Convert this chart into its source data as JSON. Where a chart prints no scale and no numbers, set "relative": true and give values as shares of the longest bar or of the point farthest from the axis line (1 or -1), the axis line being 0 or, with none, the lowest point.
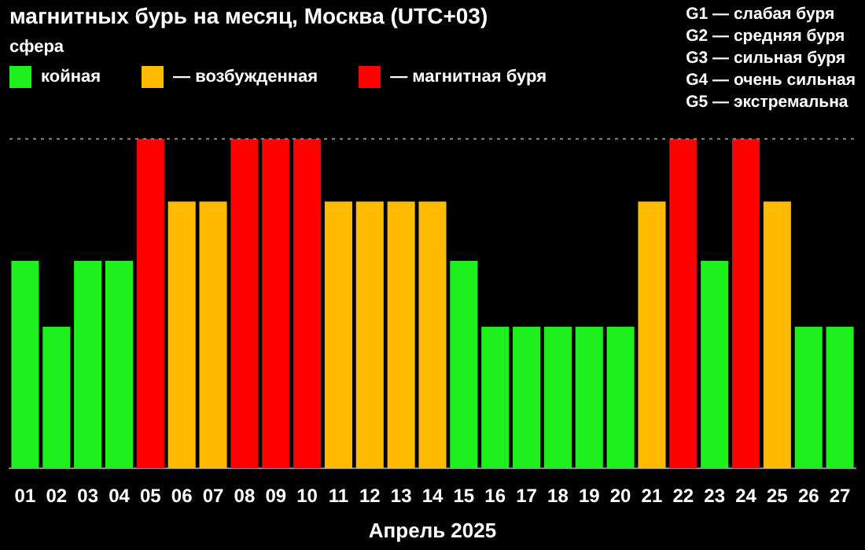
{
  "chart_data": {
    "type": "bar",
    "title": "магнитных бурь на месяц, Москва (UTC+03)",
    "legend_title": "сфера",
    "xlabel": "Апрель 2025",
    "relative": true,
    "legend": "top left",
    "categories": [
      "01",
      "02",
      "03",
      "04",
      "05",
      "06",
      "07",
      "08",
      "09",
      "10",
      "11",
      "12",
      "13",
      "14",
      "15",
      "16",
      "17",
      "18",
      "19",
      "20",
      "21",
      "22",
      "23",
      "24",
      "25",
      "26",
      "27"
    ],
    "series": [
      {
        "name": "койная",
        "color": "#1ef01e",
        "values": [
          0.63,
          0.43,
          0.63,
          0.63,
          null,
          null,
          null,
          null,
          null,
          null,
          null,
          null,
          null,
          null,
          0.63,
          0.43,
          0.43,
          0.43,
          0.43,
          0.43,
          null,
          null,
          0.63,
          null,
          null,
          0.43,
          0.43
        ]
      },
      {
        "name": "— возбужденная",
        "color": "#ffbb00",
        "values": [
          null,
          null,
          null,
          null,
          null,
          0.81,
          0.81,
          null,
          null,
          null,
          0.81,
          0.81,
          0.81,
          0.81,
          null,
          null,
          null,
          null,
          null,
          null,
          0.81,
          null,
          null,
          null,
          0.81,
          null,
          null
        ]
      },
      {
        "name": "— магнитная буря",
        "color": "#ff0000",
        "values": [
          null,
          null,
          null,
          null,
          1,
          null,
          null,
          1,
          1,
          1,
          null,
          null,
          null,
          null,
          null,
          null,
          null,
          null,
          null,
          null,
          null,
          1,
          null,
          1,
          null,
          null,
          null
        ]
      }
    ],
    "ref_lines": [
      {
        "axis": "y",
        "value": 1,
        "line_style": "dotted",
        "color": "#888888"
      }
    ],
    "annotations": [
      "G1 — слабая буря",
      "G2 — средняя буря",
      "G3 — сильная буря",
      "G4 — очень сильная",
      "G5 — экстремальна"
    ]
  }
}
